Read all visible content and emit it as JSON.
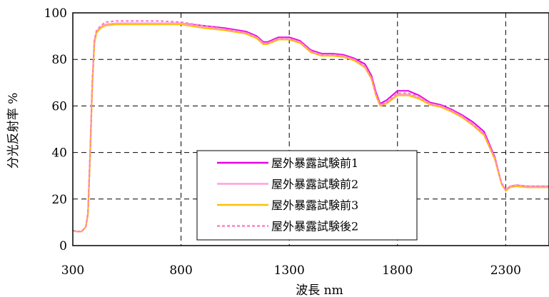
{
  "chart_data": {
    "type": "line",
    "title": "",
    "xlabel": "波長 nm",
    "ylabel": "分光反射率 %",
    "xlim": [
      300,
      2500
    ],
    "ylim": [
      0,
      100
    ],
    "x_ticks": [
      300,
      800,
      1300,
      1800,
      2300
    ],
    "y_ticks": [
      0,
      20,
      40,
      60,
      80,
      100
    ],
    "grid": true,
    "legend_position": "bottom-center",
    "series": [
      {
        "name": "屋外暴露試験前1",
        "color": "#e600e6",
        "dash": "solid",
        "x": [
          300,
          320,
          340,
          360,
          370,
          380,
          390,
          400,
          410,
          420,
          430,
          450,
          500,
          600,
          700,
          800,
          900,
          1000,
          1100,
          1150,
          1180,
          1200,
          1250,
          1300,
          1350,
          1400,
          1450,
          1500,
          1550,
          1600,
          1650,
          1680,
          1700,
          1720,
          1750,
          1800,
          1850,
          1900,
          1950,
          2000,
          2050,
          2100,
          2150,
          2200,
          2250,
          2280,
          2300,
          2320,
          2350,
          2400,
          2450,
          2500
        ],
        "values": [
          6.5,
          6.0,
          6.0,
          8,
          14,
          40,
          70,
          88,
          92,
          93,
          94,
          95,
          95.5,
          95.5,
          95.5,
          95.5,
          94.5,
          93.5,
          92,
          90,
          87.5,
          87.5,
          89.5,
          89.5,
          88,
          84,
          82.5,
          82.5,
          82,
          80.5,
          78,
          73,
          66,
          61,
          62.5,
          66.5,
          66.5,
          64.5,
          61.5,
          60.5,
          58.5,
          56,
          53,
          49,
          38,
          27,
          24,
          25.5,
          26,
          25.5,
          25.5,
          25.5
        ]
      },
      {
        "name": "屋外暴露試験前2",
        "color": "#ffa0e0",
        "dash": "solid",
        "x": [
          300,
          320,
          340,
          360,
          370,
          380,
          390,
          400,
          410,
          420,
          430,
          450,
          500,
          600,
          700,
          800,
          900,
          1000,
          1100,
          1150,
          1180,
          1200,
          1250,
          1300,
          1350,
          1400,
          1450,
          1500,
          1550,
          1600,
          1650,
          1680,
          1700,
          1720,
          1750,
          1800,
          1850,
          1900,
          1950,
          2000,
          2050,
          2100,
          2150,
          2200,
          2250,
          2280,
          2300,
          2320,
          2350,
          2400,
          2450,
          2500
        ],
        "values": [
          6.5,
          6.0,
          6.0,
          8,
          14,
          40,
          70,
          88,
          92,
          93,
          94,
          95,
          95.5,
          95.5,
          95.5,
          95.5,
          94,
          93,
          91.5,
          89.5,
          87,
          87,
          89,
          89,
          87.5,
          83.5,
          82,
          82,
          81.5,
          80,
          77,
          72,
          65,
          60.5,
          61.5,
          65,
          65,
          63.5,
          61,
          60,
          58,
          55.5,
          52,
          48,
          37.5,
          27,
          24,
          25.5,
          26,
          25.5,
          25.5,
          25.5
        ]
      },
      {
        "name": "屋外暴露試験前3",
        "color": "#ffc000",
        "dash": "solid",
        "x": [
          300,
          320,
          340,
          360,
          370,
          380,
          390,
          400,
          410,
          420,
          430,
          450,
          500,
          600,
          700,
          800,
          900,
          1000,
          1100,
          1150,
          1180,
          1200,
          1250,
          1300,
          1350,
          1400,
          1450,
          1500,
          1550,
          1600,
          1650,
          1680,
          1700,
          1720,
          1750,
          1800,
          1850,
          1900,
          1950,
          2000,
          2050,
          2100,
          2150,
          2200,
          2250,
          2280,
          2300,
          2320,
          2350,
          2400,
          2450,
          2500
        ],
        "values": [
          6.5,
          6.0,
          6.0,
          8,
          13,
          38,
          68,
          87,
          91.5,
          92.5,
          93.5,
          94.5,
          95,
          95,
          95,
          95,
          93.5,
          92.5,
          91,
          89,
          86.5,
          86.5,
          88.5,
          88.5,
          87,
          83,
          81.5,
          81.5,
          81,
          79.5,
          76.5,
          71.5,
          64.5,
          60,
          61,
          64.5,
          64.5,
          63,
          60.5,
          59.5,
          57.5,
          55,
          51.5,
          47.5,
          37,
          26.5,
          23.5,
          25,
          25.5,
          25,
          25,
          25
        ]
      },
      {
        "name": "屋外暴露試験後2",
        "color": "#ff80c0",
        "dash": "dashed",
        "x": [
          300,
          320,
          340,
          360,
          370,
          380,
          390,
          400,
          410,
          420,
          430,
          450,
          500,
          600,
          700,
          800,
          900,
          1000,
          1100,
          1150,
          1180,
          1200,
          1250,
          1300,
          1350,
          1400,
          1450,
          1500,
          1550,
          1600,
          1650,
          1680,
          1700,
          1720,
          1750,
          1800,
          1850,
          1900,
          1950,
          2000,
          2050,
          2100,
          2150,
          2200,
          2250,
          2280,
          2300,
          2320,
          2350,
          2400,
          2450,
          2500
        ],
        "values": [
          6.5,
          6.0,
          6.0,
          8,
          14,
          40,
          70,
          88.5,
          92.5,
          93.5,
          94.5,
          96,
          96.5,
          96.5,
          96.5,
          96,
          94.5,
          93,
          91.5,
          89.5,
          87,
          87,
          89,
          89,
          87.5,
          83.5,
          82,
          82,
          81.5,
          80,
          77,
          72,
          65,
          60.5,
          61.5,
          65.5,
          65.5,
          64,
          61,
          60,
          58,
          55.5,
          52,
          48,
          37.5,
          27,
          24,
          25.5,
          26,
          25.5,
          25.5,
          25.5
        ]
      }
    ]
  }
}
